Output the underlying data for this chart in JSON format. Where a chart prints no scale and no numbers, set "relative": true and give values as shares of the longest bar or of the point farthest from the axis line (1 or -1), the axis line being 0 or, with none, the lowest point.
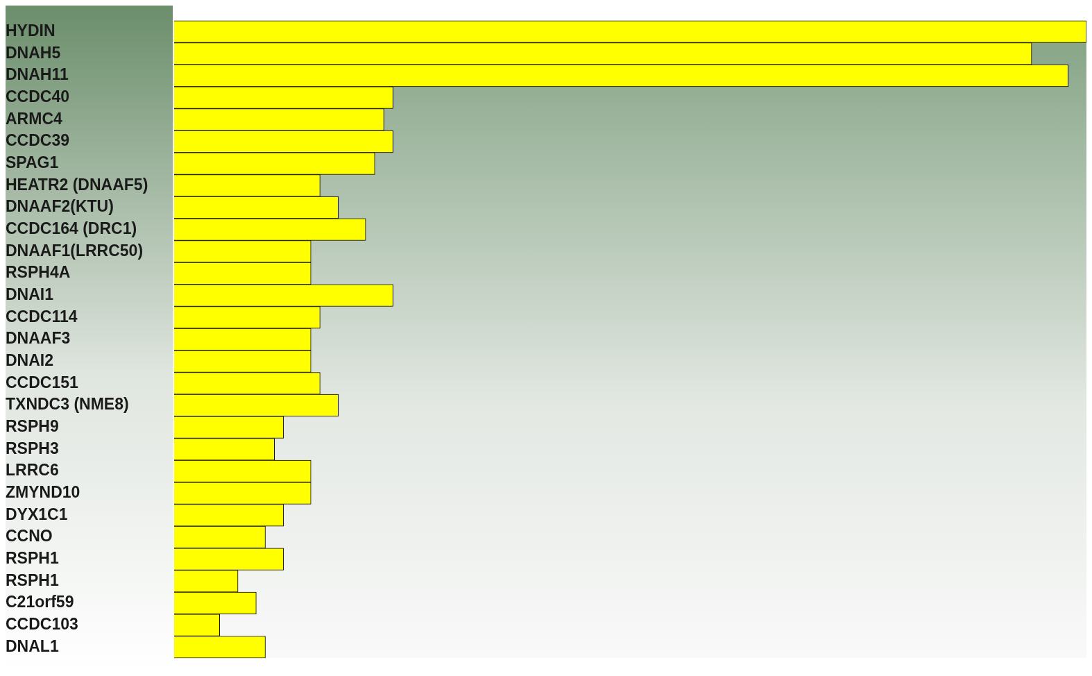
{
  "chart_data": {
    "type": "bar",
    "orientation": "horizontal",
    "relative": true,
    "color": "#ffff00",
    "legend": false,
    "grid": false,
    "categories": [
      "HYDIN",
      "DNAH5",
      "DNAH11",
      "CCDC40",
      "ARMC4",
      "CCDC39",
      "SPAG1",
      "HEATR2 (DNAAF5)",
      "DNAAF2(KTU)",
      "CCDC164 (DRC1)",
      "DNAAF1(LRRC50)",
      "RSPH4A",
      "DNAI1",
      "CCDC114",
      "DNAAF3",
      "DNAI2",
      "CCDC151",
      "TXNDC3 (NME8)",
      "RSPH9",
      "RSPH3",
      "LRRC6",
      "ZMYND10",
      "DYX1C1",
      "CCNO",
      "RSPH1",
      "RSPH1",
      "C21orf59",
      "CCDC103",
      "DNAL1"
    ],
    "values": [
      1,
      0.94,
      0.98,
      0.24,
      0.23,
      0.24,
      0.22,
      0.16,
      0.18,
      0.21,
      0.15,
      0.15,
      0.24,
      0.16,
      0.15,
      0.15,
      0.16,
      0.18,
      0.12,
      0.11,
      0.15,
      0.15,
      0.12,
      0.1,
      0.12,
      0.07,
      0.09,
      0.05,
      0.1
    ]
  }
}
